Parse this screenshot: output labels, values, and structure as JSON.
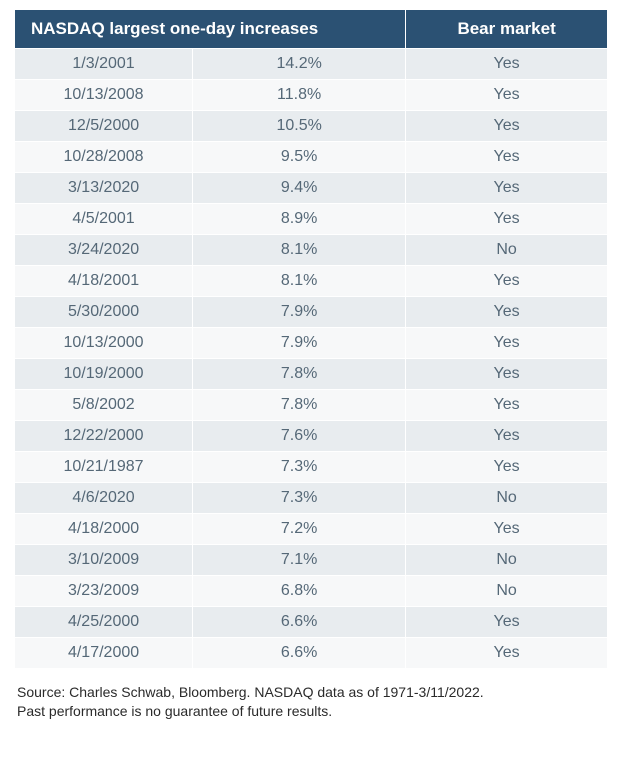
{
  "table": {
    "type": "table",
    "header_bg": "#2b5173",
    "header_text_color": "#ffffff",
    "row_even_bg": "#e8ecef",
    "row_odd_bg": "#f7f8f9",
    "cell_text_color": "#556877",
    "header_fontsize": 17,
    "cell_fontsize": 16,
    "columns": [
      {
        "label": "NASDAQ largest one-day increases",
        "align": "left",
        "colspan": 2
      },
      {
        "label": "Bear market",
        "align": "center"
      }
    ],
    "sub_columns": [
      "date",
      "pct",
      "bear"
    ],
    "rows": [
      {
        "date": "1/3/2001",
        "pct": "14.2%",
        "bear": "Yes"
      },
      {
        "date": "10/13/2008",
        "pct": "11.8%",
        "bear": "Yes"
      },
      {
        "date": "12/5/2000",
        "pct": "10.5%",
        "bear": "Yes"
      },
      {
        "date": "10/28/2008",
        "pct": "9.5%",
        "bear": "Yes"
      },
      {
        "date": "3/13/2020",
        "pct": "9.4%",
        "bear": "Yes"
      },
      {
        "date": "4/5/2001",
        "pct": "8.9%",
        "bear": "Yes"
      },
      {
        "date": "3/24/2020",
        "pct": "8.1%",
        "bear": "No"
      },
      {
        "date": "4/18/2001",
        "pct": "8.1%",
        "bear": "Yes"
      },
      {
        "date": "5/30/2000",
        "pct": "7.9%",
        "bear": "Yes"
      },
      {
        "date": "10/13/2000",
        "pct": "7.9%",
        "bear": "Yes"
      },
      {
        "date": "10/19/2000",
        "pct": "7.8%",
        "bear": "Yes"
      },
      {
        "date": "5/8/2002",
        "pct": "7.8%",
        "bear": "Yes"
      },
      {
        "date": "12/22/2000",
        "pct": "7.6%",
        "bear": "Yes"
      },
      {
        "date": "10/21/1987",
        "pct": "7.3%",
        "bear": "Yes"
      },
      {
        "date": "4/6/2020",
        "pct": "7.3%",
        "bear": "No"
      },
      {
        "date": "4/18/2000",
        "pct": "7.2%",
        "bear": "Yes"
      },
      {
        "date": "3/10/2009",
        "pct": "7.1%",
        "bear": "No"
      },
      {
        "date": "3/23/2009",
        "pct": "6.8%",
        "bear": "No"
      },
      {
        "date": "4/25/2000",
        "pct": "6.6%",
        "bear": "Yes"
      },
      {
        "date": "4/17/2000",
        "pct": "6.6%",
        "bear": "Yes"
      }
    ]
  },
  "source": {
    "line1": "Source: Charles Schwab, Bloomberg. NASDAQ data as of 1971-3/11/2022.",
    "line2": "Past performance is no guarantee of future results."
  }
}
